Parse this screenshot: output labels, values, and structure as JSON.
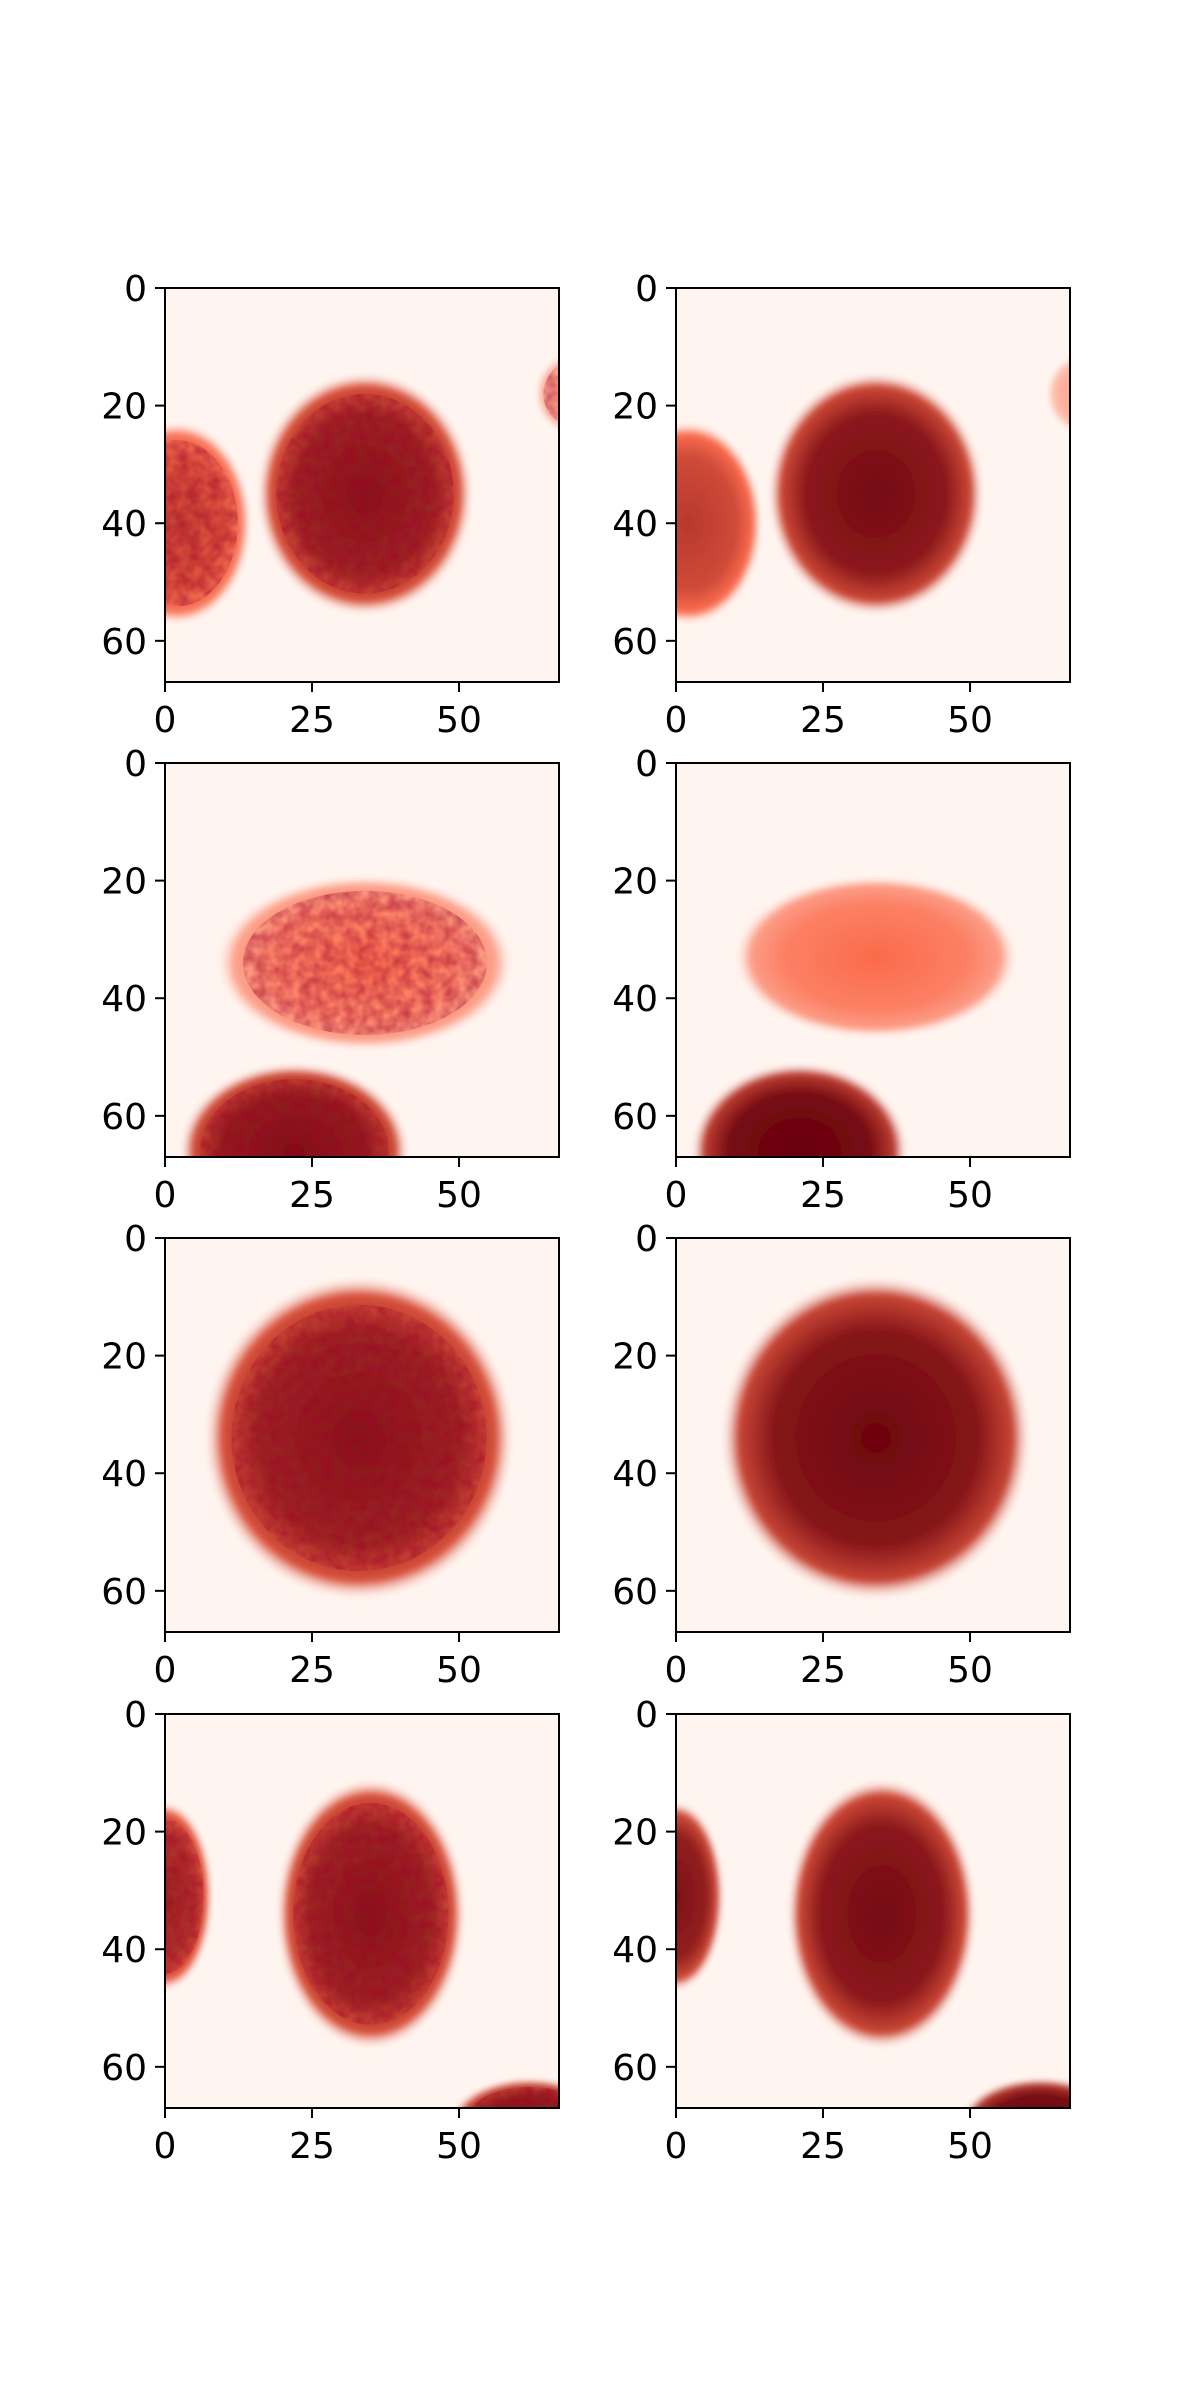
{
  "colormap": {
    "name": "Reds",
    "low": "#fff5f0",
    "mid": "#fb6a4a",
    "high": "#67000d"
  },
  "chart_data": [
    {
      "type": "heatmap",
      "title": "",
      "xlabel": "",
      "ylabel": "",
      "xlim": [
        0,
        67
      ],
      "ylim": [
        67,
        0
      ],
      "x_ticks": [
        0,
        25,
        50
      ],
      "y_ticks": [
        0,
        20,
        40,
        60
      ],
      "blobs": [
        {
          "cx": 34,
          "cy": 35,
          "rx": 16,
          "ry": 18,
          "level": 0.82,
          "texture": true
        },
        {
          "cx": 2,
          "cy": 40,
          "rx": 11,
          "ry": 15,
          "level": 0.6,
          "texture": true
        },
        {
          "cx": 70,
          "cy": 18,
          "rx": 6,
          "ry": 6,
          "level": 0.3,
          "texture": true
        }
      ]
    },
    {
      "type": "heatmap",
      "title": "",
      "xlabel": "",
      "ylabel": "",
      "xlim": [
        0,
        67
      ],
      "ylim": [
        67,
        0
      ],
      "x_ticks": [
        0,
        25,
        50
      ],
      "y_ticks": [
        0,
        20,
        40,
        60
      ],
      "blobs": [
        {
          "cx": 34,
          "cy": 35,
          "rx": 16,
          "ry": 18,
          "level": 0.88,
          "texture": false
        },
        {
          "cx": 2,
          "cy": 40,
          "rx": 11,
          "ry": 15,
          "level": 0.65,
          "texture": false
        },
        {
          "cx": 70,
          "cy": 18,
          "rx": 6,
          "ry": 6,
          "level": 0.25,
          "texture": false
        }
      ]
    },
    {
      "type": "heatmap",
      "title": "",
      "xlabel": "",
      "ylabel": "",
      "xlim": [
        0,
        67
      ],
      "ylim": [
        67,
        0
      ],
      "x_ticks": [
        0,
        25,
        50
      ],
      "y_ticks": [
        0,
        20,
        40,
        60
      ],
      "blobs": [
        {
          "cx": 34,
          "cy": 34,
          "rx": 22,
          "ry": 13,
          "level": 0.4,
          "texture": true
        },
        {
          "cx": 22,
          "cy": 66,
          "rx": 17,
          "ry": 13,
          "level": 0.85,
          "texture": true
        }
      ]
    },
    {
      "type": "heatmap",
      "title": "",
      "xlabel": "",
      "ylabel": "",
      "xlim": [
        0,
        67
      ],
      "ylim": [
        67,
        0
      ],
      "x_ticks": [
        0,
        25,
        50
      ],
      "y_ticks": [
        0,
        20,
        40,
        60
      ],
      "blobs": [
        {
          "cx": 34,
          "cy": 33,
          "rx": 21,
          "ry": 12,
          "level": 0.42,
          "texture": false
        },
        {
          "cx": 21,
          "cy": 66,
          "rx": 16,
          "ry": 13,
          "level": 0.95,
          "texture": false
        }
      ]
    },
    {
      "type": "heatmap",
      "title": "",
      "xlabel": "",
      "ylabel": "",
      "xlim": [
        0,
        67
      ],
      "ylim": [
        67,
        0
      ],
      "x_ticks": [
        0,
        25,
        50
      ],
      "y_ticks": [
        0,
        20,
        40,
        60
      ],
      "blobs": [
        {
          "cx": 33,
          "cy": 34,
          "rx": 23,
          "ry": 24,
          "level": 0.82,
          "texture": true
        }
      ]
    },
    {
      "type": "heatmap",
      "title": "",
      "xlabel": "",
      "ylabel": "",
      "xlim": [
        0,
        67
      ],
      "ylim": [
        67,
        0
      ],
      "x_ticks": [
        0,
        25,
        50
      ],
      "y_ticks": [
        0,
        20,
        40,
        60
      ],
      "blobs": [
        {
          "cx": 34,
          "cy": 34,
          "rx": 23,
          "ry": 24,
          "level": 0.9,
          "texture": false
        }
      ]
    },
    {
      "type": "heatmap",
      "title": "",
      "xlabel": "",
      "ylabel": "",
      "xlim": [
        0,
        67
      ],
      "ylim": [
        67,
        0
      ],
      "x_ticks": [
        0,
        25,
        50
      ],
      "y_ticks": [
        0,
        20,
        40,
        60
      ],
      "blobs": [
        {
          "cx": 35,
          "cy": 34,
          "rx": 14,
          "ry": 20,
          "level": 0.82,
          "texture": true
        },
        {
          "cx": 0,
          "cy": 31,
          "rx": 7,
          "ry": 14,
          "level": 0.75,
          "texture": true
        },
        {
          "cx": 62,
          "cy": 70,
          "rx": 12,
          "ry": 7,
          "level": 0.85,
          "texture": true
        }
      ]
    },
    {
      "type": "heatmap",
      "title": "",
      "xlabel": "",
      "ylabel": "",
      "xlim": [
        0,
        67
      ],
      "ylim": [
        67,
        0
      ],
      "x_ticks": [
        0,
        25,
        50
      ],
      "y_ticks": [
        0,
        20,
        40,
        60
      ],
      "blobs": [
        {
          "cx": 35,
          "cy": 34,
          "rx": 14,
          "ry": 20,
          "level": 0.88,
          "texture": false
        },
        {
          "cx": 0,
          "cy": 31,
          "rx": 7,
          "ry": 14,
          "level": 0.85,
          "texture": false
        },
        {
          "cx": 62,
          "cy": 70,
          "rx": 12,
          "ry": 7,
          "level": 0.95,
          "texture": false
        }
      ]
    }
  ]
}
